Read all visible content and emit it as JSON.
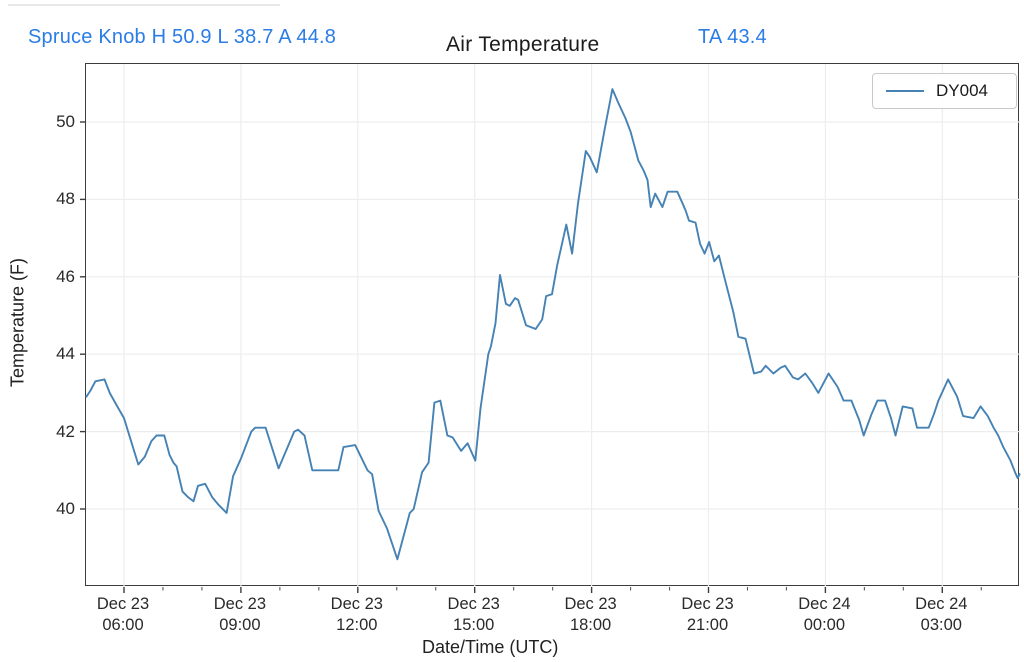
{
  "header": {
    "station_summary": "Spruce Knob H 50.9 L 38.7 A 44.8",
    "title": "Air Temperature",
    "ta_reading": "TA 43.4",
    "accent_blue": "#2b7ce5"
  },
  "stats": {
    "station": "Spruce Knob",
    "high": "50.9",
    "low": "38.7",
    "average": "44.8",
    "ta": "43.4"
  },
  "chart_data": {
    "type": "line",
    "title": "Air Temperature",
    "xlabel": "Date/Time (UTC)",
    "ylabel": "Temperature (F)",
    "ylim": [
      38.0,
      51.5
    ],
    "grid": "on",
    "legend_position": "upper right",
    "y_ticks": [
      40,
      42,
      44,
      46,
      48,
      50
    ],
    "x_ticks": [
      {
        "line1": "Dec 23",
        "line2": "06:00",
        "minutes": 360
      },
      {
        "line1": "Dec 23",
        "line2": "09:00",
        "minutes": 540
      },
      {
        "line1": "Dec 23",
        "line2": "12:00",
        "minutes": 720
      },
      {
        "line1": "Dec 23",
        "line2": "15:00",
        "minutes": 900
      },
      {
        "line1": "Dec 23",
        "line2": "18:00",
        "minutes": 1080
      },
      {
        "line1": "Dec 23",
        "line2": "21:00",
        "minutes": 1260
      },
      {
        "line1": "Dec 24",
        "line2": "00:00",
        "minutes": 1440
      },
      {
        "line1": "Dec 24",
        "line2": "03:00",
        "minutes": 1620
      }
    ],
    "series": [
      {
        "name": "DY004",
        "color": "#4682b4",
        "points_format": "[minutes since Dec 23 00:00 UTC, temperature F]",
        "points": [
          [
            302,
            42.9
          ],
          [
            308,
            43.05
          ],
          [
            316,
            43.3
          ],
          [
            330,
            43.35
          ],
          [
            338,
            43.0
          ],
          [
            348,
            42.7
          ],
          [
            360,
            42.35
          ],
          [
            370,
            41.8
          ],
          [
            382,
            41.15
          ],
          [
            392,
            41.35
          ],
          [
            402,
            41.75
          ],
          [
            410,
            41.9
          ],
          [
            422,
            41.9
          ],
          [
            430,
            41.4
          ],
          [
            436,
            41.2
          ],
          [
            441,
            41.1
          ],
          [
            450,
            40.45
          ],
          [
            459,
            40.3
          ],
          [
            467,
            40.2
          ],
          [
            474,
            40.6
          ],
          [
            485,
            40.65
          ],
          [
            496,
            40.3
          ],
          [
            506,
            40.1
          ],
          [
            518,
            39.9
          ],
          [
            528,
            40.85
          ],
          [
            540,
            41.3
          ],
          [
            556,
            42.0
          ],
          [
            562,
            42.1
          ],
          [
            578,
            42.1
          ],
          [
            598,
            41.05
          ],
          [
            622,
            42.0
          ],
          [
            628,
            42.05
          ],
          [
            638,
            41.9
          ],
          [
            650,
            41.0
          ],
          [
            690,
            41.0
          ],
          [
            698,
            41.6
          ],
          [
            716,
            41.65
          ],
          [
            735,
            41.0
          ],
          [
            742,
            40.9
          ],
          [
            752,
            39.95
          ],
          [
            765,
            39.5
          ],
          [
            781,
            38.7
          ],
          [
            800,
            39.9
          ],
          [
            806,
            40.0
          ],
          [
            819,
            40.95
          ],
          [
            829,
            41.2
          ],
          [
            838,
            42.75
          ],
          [
            847,
            42.8
          ],
          [
            858,
            41.9
          ],
          [
            866,
            41.85
          ],
          [
            879,
            41.5
          ],
          [
            889,
            41.7
          ],
          [
            901,
            41.25
          ],
          [
            909,
            42.6
          ],
          [
            921,
            44.0
          ],
          [
            925,
            44.2
          ],
          [
            932,
            44.8
          ],
          [
            939,
            46.05
          ],
          [
            948,
            45.3
          ],
          [
            954,
            45.25
          ],
          [
            962,
            45.45
          ],
          [
            967,
            45.4
          ],
          [
            979,
            44.75
          ],
          [
            994,
            44.65
          ],
          [
            1004,
            44.9
          ],
          [
            1010,
            45.5
          ],
          [
            1019,
            45.55
          ],
          [
            1027,
            46.3
          ],
          [
            1041,
            47.35
          ],
          [
            1050,
            46.6
          ],
          [
            1059,
            47.9
          ],
          [
            1071,
            49.25
          ],
          [
            1077,
            49.1
          ],
          [
            1088,
            48.7
          ],
          [
            1100,
            49.8
          ],
          [
            1112,
            50.85
          ],
          [
            1121,
            50.5
          ],
          [
            1132,
            50.1
          ],
          [
            1140,
            49.75
          ],
          [
            1152,
            49.0
          ],
          [
            1160,
            48.75
          ],
          [
            1166,
            48.5
          ],
          [
            1171,
            47.8
          ],
          [
            1178,
            48.15
          ],
          [
            1189,
            47.8
          ],
          [
            1197,
            48.2
          ],
          [
            1212,
            48.2
          ],
          [
            1220,
            47.9
          ],
          [
            1225,
            47.7
          ],
          [
            1230,
            47.45
          ],
          [
            1240,
            47.4
          ],
          [
            1247,
            46.85
          ],
          [
            1254,
            46.6
          ],
          [
            1261,
            46.9
          ],
          [
            1269,
            46.4
          ],
          [
            1276,
            46.55
          ],
          [
            1285,
            45.95
          ],
          [
            1298,
            45.1
          ],
          [
            1306,
            44.45
          ],
          [
            1317,
            44.4
          ],
          [
            1330,
            43.5
          ],
          [
            1341,
            43.55
          ],
          [
            1348,
            43.7
          ],
          [
            1360,
            43.5
          ],
          [
            1371,
            43.65
          ],
          [
            1378,
            43.7
          ],
          [
            1390,
            43.4
          ],
          [
            1398,
            43.35
          ],
          [
            1409,
            43.5
          ],
          [
            1420,
            43.25
          ],
          [
            1429,
            43.0
          ],
          [
            1445,
            43.5
          ],
          [
            1459,
            43.15
          ],
          [
            1468,
            42.8
          ],
          [
            1480,
            42.8
          ],
          [
            1492,
            42.3
          ],
          [
            1499,
            41.9
          ],
          [
            1511,
            42.45
          ],
          [
            1520,
            42.8
          ],
          [
            1532,
            42.8
          ],
          [
            1541,
            42.35
          ],
          [
            1548,
            41.9
          ],
          [
            1559,
            42.65
          ],
          [
            1574,
            42.6
          ],
          [
            1581,
            42.1
          ],
          [
            1599,
            42.1
          ],
          [
            1607,
            42.45
          ],
          [
            1614,
            42.8
          ],
          [
            1629,
            43.35
          ],
          [
            1643,
            42.9
          ],
          [
            1652,
            42.4
          ],
          [
            1668,
            42.35
          ],
          [
            1679,
            42.65
          ],
          [
            1690,
            42.4
          ],
          [
            1699,
            42.1
          ],
          [
            1706,
            41.9
          ],
          [
            1714,
            41.6
          ],
          [
            1725,
            41.25
          ],
          [
            1732,
            40.95
          ],
          [
            1736,
            40.8
          ],
          [
            1739,
            40.9
          ]
        ]
      }
    ]
  }
}
